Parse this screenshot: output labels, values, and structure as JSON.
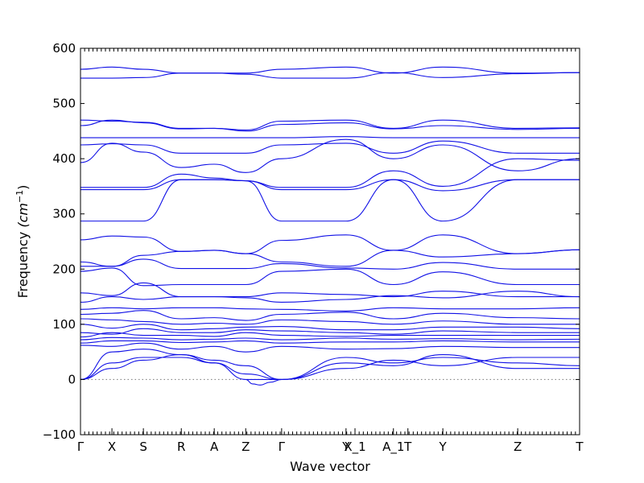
{
  "chart_data": {
    "type": "line",
    "xlabel": "Wave vector",
    "ylabel": "Frequency",
    "ylabel_unit": "(cm",
    "ylabel_unit_exp": "−1",
    "ylabel_unit_close": ")",
    "ylim": [
      -100,
      600
    ],
    "yticks": [
      -100,
      0,
      100,
      200,
      300,
      400,
      500,
      600
    ],
    "xrange": [
      0,
      1
    ],
    "zero_reference_line": true,
    "grid": false,
    "legend": "none",
    "line_color": "#1010e6",
    "xticks": [
      {
        "label": "Γ",
        "pos": 0.0
      },
      {
        "label": "X",
        "pos": 0.063
      },
      {
        "label": "S",
        "pos": 0.126
      },
      {
        "label": "R",
        "pos": 0.202
      },
      {
        "label": "A",
        "pos": 0.268
      },
      {
        "label": "Z",
        "pos": 0.331
      },
      {
        "label": "Γ",
        "pos": 0.403
      },
      {
        "label": "Y",
        "pos": 0.532
      },
      {
        "label": "X_1",
        "pos": 0.55
      },
      {
        "label": "A_1",
        "pos": 0.627
      },
      {
        "label": "T",
        "pos": 0.656
      },
      {
        "label": "Y",
        "pos": 0.726
      },
      {
        "label": "Z",
        "pos": 0.876
      },
      {
        "label": "T",
        "pos": 1.0
      }
    ],
    "series": [
      {
        "x": [
          0,
          0.063,
          0.126,
          0.202,
          0.268,
          0.331,
          0.403,
          0.532,
          0.627,
          0.726,
          0.876,
          1.0
        ],
        "y": [
          562,
          566,
          562,
          555,
          555,
          555,
          562,
          566,
          555,
          566,
          555,
          556
        ]
      },
      {
        "x": [
          0,
          0.063,
          0.126,
          0.202,
          0.268,
          0.331,
          0.403,
          0.532,
          0.627,
          0.726,
          0.876,
          1.0
        ],
        "y": [
          546,
          546,
          547,
          555,
          555,
          553,
          546,
          546,
          556,
          547,
          554,
          556
        ]
      },
      {
        "x": [
          0,
          0.063,
          0.126,
          0.202,
          0.268,
          0.331,
          0.403,
          0.532,
          0.627,
          0.726,
          0.876,
          1.0
        ],
        "y": [
          470,
          468,
          466,
          455,
          455,
          452,
          468,
          470,
          455,
          470,
          455,
          456
        ]
      },
      {
        "x": [
          0,
          0.063,
          0.126,
          0.202,
          0.268,
          0.331,
          0.403,
          0.532,
          0.627,
          0.726,
          0.876,
          1.0
        ],
        "y": [
          460,
          470,
          465,
          454,
          455,
          450,
          462,
          465,
          454,
          460,
          453,
          455
        ]
      },
      {
        "x": [
          0,
          0.063,
          0.126,
          0.202,
          0.268,
          0.331,
          0.403,
          0.532,
          0.627,
          0.726,
          0.876,
          1.0
        ],
        "y": [
          438,
          438,
          438,
          438,
          438,
          438,
          438,
          440,
          438,
          438,
          438,
          438
        ]
      },
      {
        "x": [
          0,
          0.063,
          0.126,
          0.202,
          0.268,
          0.331,
          0.403,
          0.532,
          0.627,
          0.726,
          0.876,
          1.0
        ],
        "y": [
          425,
          427,
          425,
          410,
          410,
          410,
          425,
          428,
          410,
          432,
          410,
          410
        ]
      },
      {
        "x": [
          0,
          0.063,
          0.126,
          0.202,
          0.268,
          0.331,
          0.403,
          0.532,
          0.627,
          0.726,
          0.876,
          1.0
        ],
        "y": [
          393,
          428,
          412,
          384,
          390,
          375,
          400,
          435,
          400,
          425,
          378,
          400
        ]
      },
      {
        "x": [
          0,
          0.063,
          0.126,
          0.202,
          0.268,
          0.331,
          0.403,
          0.532,
          0.627,
          0.726,
          0.876,
          1.0
        ],
        "y": [
          348,
          348,
          348,
          372,
          365,
          360,
          348,
          348,
          378,
          350,
          400,
          397
        ]
      },
      {
        "x": [
          0,
          0.063,
          0.126,
          0.202,
          0.268,
          0.331,
          0.403,
          0.532,
          0.627,
          0.726,
          0.876,
          1.0
        ],
        "y": [
          344,
          344,
          344,
          362,
          362,
          360,
          344,
          344,
          362,
          342,
          362,
          362
        ]
      },
      {
        "x": [
          0,
          0.063,
          0.126,
          0.202,
          0.268,
          0.331,
          0.403,
          0.532,
          0.627,
          0.726,
          0.876,
          1.0
        ],
        "y": [
          287,
          287,
          287,
          362,
          362,
          360,
          287,
          287,
          362,
          287,
          362,
          362
        ]
      },
      {
        "x": [
          0,
          0.063,
          0.126,
          0.202,
          0.268,
          0.331,
          0.403,
          0.532,
          0.627,
          0.726,
          0.876,
          1.0
        ],
        "y": [
          253,
          260,
          258,
          232,
          234,
          228,
          252,
          262,
          234,
          262,
          228,
          235
        ]
      },
      {
        "x": [
          0,
          0.063,
          0.126,
          0.202,
          0.268,
          0.331,
          0.403,
          0.532,
          0.627,
          0.726,
          0.876,
          1.0
        ],
        "y": [
          213,
          205,
          225,
          232,
          234,
          228,
          213,
          205,
          234,
          222,
          228,
          235
        ]
      },
      {
        "x": [
          0,
          0.063,
          0.126,
          0.202,
          0.268,
          0.331,
          0.403,
          0.532,
          0.627,
          0.726,
          0.876,
          1.0
        ],
        "y": [
          205,
          205,
          218,
          201,
          201,
          201,
          210,
          202,
          200,
          212,
          200,
          200
        ]
      },
      {
        "x": [
          0,
          0.063,
          0.126,
          0.202,
          0.268,
          0.331,
          0.403,
          0.532,
          0.627,
          0.726,
          0.876,
          1.0
        ],
        "y": [
          196,
          202,
          170,
          172,
          172,
          172,
          196,
          200,
          172,
          195,
          172,
          172
        ]
      },
      {
        "x": [
          0,
          0.063,
          0.126,
          0.202,
          0.268,
          0.331,
          0.403,
          0.532,
          0.627,
          0.726,
          0.876,
          1.0
        ],
        "y": [
          157,
          152,
          175,
          150,
          150,
          150,
          157,
          154,
          150,
          160,
          150,
          150
        ]
      },
      {
        "x": [
          0,
          0.063,
          0.126,
          0.202,
          0.268,
          0.331,
          0.403,
          0.532,
          0.627,
          0.726,
          0.876,
          1.0
        ],
        "y": [
          140,
          150,
          145,
          150,
          150,
          148,
          140,
          145,
          152,
          148,
          160,
          150
        ]
      },
      {
        "x": [
          0,
          0.063,
          0.126,
          0.202,
          0.268,
          0.331,
          0.403,
          0.532,
          0.627,
          0.726,
          0.876,
          1.0
        ],
        "y": [
          127,
          130,
          128,
          130,
          130,
          128,
          127,
          124,
          130,
          128,
          128,
          130
        ]
      },
      {
        "x": [
          0,
          0.063,
          0.126,
          0.202,
          0.268,
          0.331,
          0.403,
          0.532,
          0.627,
          0.726,
          0.876,
          1.0
        ],
        "y": [
          118,
          120,
          125,
          110,
          112,
          107,
          118,
          122,
          110,
          120,
          112,
          110
        ]
      },
      {
        "x": [
          0,
          0.063,
          0.126,
          0.202,
          0.268,
          0.331,
          0.403,
          0.532,
          0.627,
          0.726,
          0.876,
          1.0
        ],
        "y": [
          110,
          108,
          105,
          100,
          102,
          100,
          108,
          105,
          100,
          106,
          100,
          100
        ]
      },
      {
        "x": [
          0,
          0.063,
          0.126,
          0.202,
          0.268,
          0.331,
          0.403,
          0.532,
          0.627,
          0.726,
          0.876,
          1.0
        ],
        "y": [
          100,
          93,
          100,
          90,
          92,
          95,
          96,
          90,
          90,
          95,
          95,
          92
        ]
      },
      {
        "x": [
          0,
          0.063,
          0.126,
          0.202,
          0.268,
          0.331,
          0.403,
          0.532,
          0.627,
          0.726,
          0.876,
          1.0
        ],
        "y": [
          85,
          82,
          92,
          85,
          85,
          90,
          88,
          85,
          82,
          88,
          85,
          85
        ]
      },
      {
        "x": [
          0,
          0.063,
          0.126,
          0.202,
          0.268,
          0.331,
          0.403,
          0.532,
          0.627,
          0.726,
          0.876,
          1.0
        ],
        "y": [
          77,
          85,
          80,
          80,
          78,
          85,
          80,
          78,
          80,
          80,
          80,
          80
        ]
      },
      {
        "x": [
          0,
          0.063,
          0.126,
          0.202,
          0.268,
          0.331,
          0.403,
          0.532,
          0.627,
          0.726,
          0.876,
          1.0
        ],
        "y": [
          72,
          76,
          75,
          72,
          73,
          75,
          72,
          75,
          73,
          74,
          72,
          73
        ]
      },
      {
        "x": [
          0,
          0.063,
          0.126,
          0.202,
          0.268,
          0.331,
          0.403,
          0.532,
          0.627,
          0.726,
          0.876,
          1.0
        ],
        "y": [
          66,
          70,
          70,
          67,
          68,
          70,
          66,
          68,
          68,
          70,
          68,
          68
        ]
      },
      {
        "x": [
          0,
          0.063,
          0.126,
          0.202,
          0.268,
          0.331,
          0.403,
          0.532,
          0.627,
          0.726,
          0.876,
          1.0
        ],
        "y": [
          62,
          60,
          66,
          55,
          60,
          50,
          60,
          55,
          56,
          60,
          58,
          58
        ]
      },
      {
        "x": [
          0,
          0.063,
          0.126,
          0.202,
          0.268,
          0.331,
          0.403,
          0.532,
          0.627,
          0.726,
          0.876,
          1.0
        ],
        "y": [
          0,
          50,
          55,
          45,
          35,
          25,
          0,
          40,
          30,
          40,
          30,
          25
        ]
      },
      {
        "x": [
          0,
          0.063,
          0.126,
          0.202,
          0.268,
          0.331,
          0.403,
          0.532,
          0.627,
          0.726,
          0.876,
          1.0
        ],
        "y": [
          0,
          30,
          40,
          40,
          30,
          10,
          0,
          30,
          25,
          45,
          20,
          20
        ]
      },
      {
        "x": [
          0,
          0.063,
          0.126,
          0.202,
          0.268,
          0.331,
          0.403,
          0.532,
          0.627,
          0.726,
          0.876,
          1.0
        ],
        "y": [
          0,
          20,
          35,
          45,
          30,
          0,
          0,
          20,
          35,
          25,
          40,
          40
        ]
      },
      {
        "x": [
          0.331,
          0.345,
          0.36,
          0.38,
          0.403
        ],
        "y": [
          0,
          -8,
          -10,
          -5,
          0
        ]
      }
    ]
  }
}
